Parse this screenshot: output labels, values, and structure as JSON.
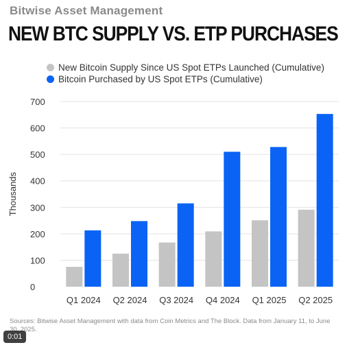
{
  "brand": "Bitwise Asset Management",
  "headline": "NEW BTC SUPPLY VS. ETP PURCHASES",
  "source": "Sources: Bitwise Asset Management with data from Coin Metrics and The Block. Data from January 11, to June 30, 2025.",
  "video_time": "0:01",
  "chart_data": {
    "type": "bar",
    "title": "NEW BTC SUPPLY VS. ETP PURCHASES",
    "xlabel": "",
    "ylabel": "Thousands",
    "categories": [
      "Q1 2024",
      "Q2 2024",
      "Q3 2024",
      "Q4 2024",
      "Q1 2025",
      "Q2 2025"
    ],
    "ylim": [
      0,
      700
    ],
    "yticks": [
      0,
      100,
      200,
      300,
      400,
      500,
      600,
      700
    ],
    "grid": true,
    "legend_position": "top",
    "series": [
      {
        "name": "New Bitcoin Supply Since US Spot ETPs Launched (Cumulative)",
        "color": "#c4c4c4",
        "values": [
          75,
          125,
          167,
          209,
          251,
          291
        ]
      },
      {
        "name": "Bitcoin Purchased by US Spot ETPs (Cumulative)",
        "color": "#0a63f5",
        "values": [
          213,
          248,
          315,
          510,
          528,
          653
        ]
      }
    ]
  }
}
